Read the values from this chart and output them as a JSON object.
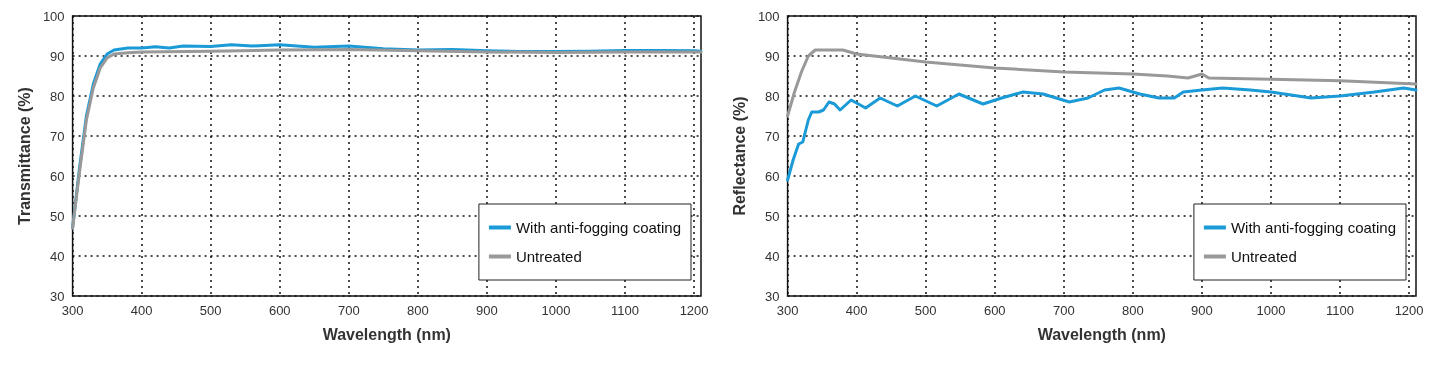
{
  "chart_data": [
    {
      "type": "line",
      "xlabel": "Wavelength (nm)",
      "ylabel": "Transmittance (%)",
      "xlim": [
        300,
        1210
      ],
      "xticks": [
        300,
        400,
        500,
        600,
        700,
        800,
        900,
        1000,
        1100,
        1200
      ],
      "ylim": [
        30,
        100
      ],
      "yticks": [
        30,
        40,
        50,
        60,
        70,
        80,
        90,
        100
      ],
      "grid": true,
      "legend": "bottom right",
      "marker": "none",
      "line_style": "solid",
      "series": [
        {
          "name": "With anti-fogging coating",
          "color": "#1a9ad6",
          "x": [
            300,
            310,
            320,
            330,
            340,
            350,
            360,
            380,
            400,
            420,
            440,
            460,
            500,
            530,
            560,
            600,
            650,
            700,
            750,
            800,
            850,
            900,
            950,
            1000,
            1050,
            1100,
            1150,
            1200,
            1210
          ],
          "values": [
            47,
            62,
            75,
            83,
            88,
            90.5,
            91.5,
            92,
            92,
            92.3,
            92,
            92.5,
            92.4,
            92.8,
            92.5,
            92.8,
            92.2,
            92.5,
            91.8,
            91.5,
            91.6,
            91.3,
            91.1,
            91.1,
            91.2,
            91.4,
            91.4,
            91.3,
            91.2
          ]
        },
        {
          "name": "Untreated",
          "color": "#999999",
          "x": [
            300,
            310,
            320,
            330,
            340,
            350,
            360,
            380,
            400,
            500,
            600,
            700,
            800,
            900,
            1000,
            1100,
            1210
          ],
          "values": [
            47,
            61,
            74,
            82,
            87,
            89.5,
            90.5,
            90.8,
            91,
            91.2,
            91.5,
            91.6,
            91.3,
            91,
            90.9,
            91,
            91
          ]
        }
      ]
    },
    {
      "type": "line",
      "xlabel": "Wavelength (nm)",
      "ylabel": "Reflectance (%)",
      "xlim": [
        300,
        1210
      ],
      "xticks": [
        300,
        400,
        500,
        600,
        700,
        800,
        900,
        1000,
        1100,
        1200
      ],
      "ylim": [
        30,
        100
      ],
      "yticks": [
        30,
        40,
        50,
        60,
        70,
        80,
        90,
        100
      ],
      "grid": true,
      "legend": "bottom right",
      "marker": "none",
      "line_style": "solid",
      "series": [
        {
          "name": "With anti-fogging coating",
          "color": "#1a9ad6",
          "x": [
            300,
            308,
            316,
            322,
            330,
            335,
            345,
            352,
            360,
            368,
            376,
            392,
            413,
            434,
            459,
            485,
            516,
            548,
            583,
            610,
            641,
            670,
            708,
            735,
            759,
            780,
            810,
            838,
            860,
            873,
            900,
            930,
            970,
            1000,
            1039,
            1058,
            1100,
            1150,
            1192,
            1210
          ],
          "values": [
            59,
            64,
            68,
            68.5,
            74,
            76,
            76,
            76.5,
            78.5,
            78,
            76.5,
            79,
            77,
            79.5,
            77.5,
            80,
            77.5,
            80.5,
            78,
            79.5,
            81,
            80.5,
            78.5,
            79.5,
            81.5,
            82,
            80.5,
            79.5,
            79.5,
            81,
            81.5,
            82,
            81.5,
            81,
            80,
            79.5,
            80,
            81,
            82,
            81.5
          ]
        },
        {
          "name": "Untreated",
          "color": "#999999",
          "x": [
            300,
            310,
            320,
            330,
            340,
            380,
            400,
            450,
            500,
            600,
            700,
            800,
            850,
            880,
            900,
            910,
            1000,
            1100,
            1210
          ],
          "values": [
            75,
            81,
            86,
            90,
            91.5,
            91.5,
            90.5,
            89.5,
            88.5,
            87,
            86,
            85.5,
            85,
            84.5,
            85.5,
            84.5,
            84.2,
            83.8,
            83
          ]
        }
      ]
    }
  ]
}
